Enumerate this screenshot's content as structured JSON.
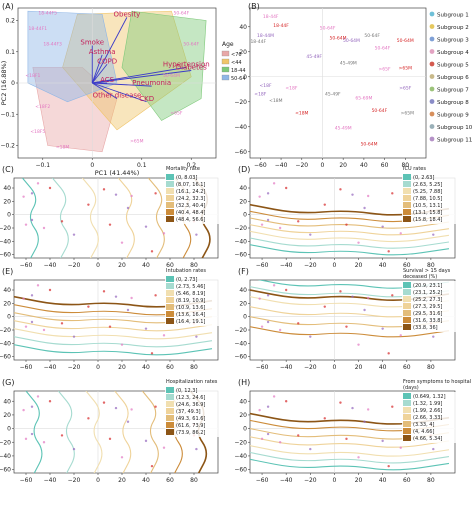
{
  "figure": {
    "panel_letters": [
      "(A)",
      "(B)",
      "(C)",
      "(D)",
      "(E)",
      "(F)",
      "(G)",
      "(H)"
    ]
  },
  "colors": {
    "axis": "#444444",
    "grid": "#dddddd",
    "text": "#222222",
    "point_pink": "#e377c2",
    "point_red": "#d62728",
    "point_purple": "#9467bd",
    "point_grey": "#777777",
    "contour_teal": "#5cc3b5",
    "contour_lightteal": "#a6dbd0",
    "contour_beige": "#f1dfb0",
    "contour_tan": "#e3bd7a",
    "contour_orange": "#cc8c3a",
    "contour_brown": "#8c5516",
    "pca_age_colors": [
      "#e8a8a8",
      "#f0c56a",
      "#7ec97a",
      "#8fb6e6"
    ]
  },
  "chart_data": [
    {
      "panel": "(A)",
      "type": "scatter",
      "xlabel": "PC1 (41.44%)",
      "ylabel": "PC2 (16.88%)",
      "xlim": [
        -0.15,
        0.25
      ],
      "ylim": [
        -0.24,
        0.24
      ],
      "xticks": [
        -0.1,
        0.0,
        0.1,
        0.2
      ],
      "yticks": [
        -0.2,
        -0.1,
        0.0,
        0.1,
        0.2
      ],
      "legend": {
        "title": "Age",
        "position": "right",
        "entries": [
          "<76",
          "<44",
          "18-44",
          "50-64"
        ]
      },
      "vectors": [
        {
          "label": "Obesity",
          "x": 0.07,
          "y": 0.21
        },
        {
          "label": "Smoke",
          "x": 0.0,
          "y": 0.12
        },
        {
          "label": "Asthma",
          "x": 0.02,
          "y": 0.09
        },
        {
          "label": "COPD",
          "x": 0.03,
          "y": 0.06
        },
        {
          "label": "Hypertension",
          "x": 0.19,
          "y": 0.05
        },
        {
          "label": "Diabetes",
          "x": 0.2,
          "y": 0.04
        },
        {
          "label": "Pneumonia",
          "x": 0.12,
          "y": -0.01
        },
        {
          "label": "ACS",
          "x": 0.03,
          "y": 0.0
        },
        {
          "label": "Other disease",
          "x": 0.05,
          "y": -0.05
        },
        {
          "label": "CKD",
          "x": 0.11,
          "y": -0.06
        }
      ],
      "points": [
        {
          "label": "18-44F5",
          "x": -0.09,
          "y": 0.22
        },
        {
          "label": "18-44F1",
          "x": -0.11,
          "y": 0.17
        },
        {
          "label": "18-44F3",
          "x": -0.08,
          "y": 0.12
        },
        {
          "label": "<18F1",
          "x": -0.12,
          "y": 0.02
        },
        {
          "label": "<18F2",
          "x": -0.1,
          "y": -0.08
        },
        {
          "label": "<18F5",
          "x": -0.11,
          "y": -0.16
        },
        {
          "label": "50-64F",
          "x": 0.18,
          "y": 0.22
        },
        {
          "label": "50-64F",
          "x": 0.2,
          "y": 0.12
        },
        {
          "label": "50-64M",
          "x": 0.16,
          "y": 0.02
        },
        {
          "label": ">65F",
          "x": 0.17,
          "y": -0.1
        },
        {
          "label": ">65M",
          "x": 0.09,
          "y": -0.19
        },
        {
          "label": "<18M",
          "x": -0.06,
          "y": -0.21
        }
      ]
    },
    {
      "panel": "(B)",
      "type": "scatter",
      "xlim": [
        -70,
        100
      ],
      "ylim": [
        -65,
        55
      ],
      "xticks": [
        -60,
        -40,
        -20,
        0,
        20,
        40,
        60,
        80
      ],
      "yticks": [
        -60,
        -40,
        -20,
        0,
        20,
        40
      ],
      "legend": {
        "position": "right",
        "entries": [
          "Subgroup 1",
          "Subgroup 2",
          "Subgroup 3",
          "Subgroup 4",
          "Subgroup 5",
          "Subgroup 6",
          "Subgroup 7",
          "Subgroup 8",
          "Subgroup 9",
          "Subgroup 10",
          "Subgroup 11"
        ]
      },
      "points": [
        {
          "label": "18-44F",
          "x": -50,
          "y": 47
        },
        {
          "label": "18-44F",
          "x": -40,
          "y": 40
        },
        {
          "label": "18-44M",
          "x": -55,
          "y": 32
        },
        {
          "label": "18-44F",
          "x": -62,
          "y": 27
        },
        {
          "label": "50-64F",
          "x": 5,
          "y": 38
        },
        {
          "label": "50-64M",
          "x": 15,
          "y": 30
        },
        {
          "label": "50-64M",
          "x": 28,
          "y": 28
        },
        {
          "label": "50-64F",
          "x": 48,
          "y": 32
        },
        {
          "label": "50-64F",
          "x": 58,
          "y": 22
        },
        {
          "label": "50-64M",
          "x": 80,
          "y": 28
        },
        {
          "label": "45-49F",
          "x": -8,
          "y": 15
        },
        {
          "label": "45-49M",
          "x": 25,
          "y": 10
        },
        {
          "label": ">65F",
          "x": 60,
          "y": 5
        },
        {
          "label": ">65M",
          "x": 80,
          "y": 6
        },
        {
          "label": "<18F",
          "x": -55,
          "y": -8
        },
        {
          "label": "<18M",
          "x": -45,
          "y": -20
        },
        {
          "label": "<18F",
          "x": -30,
          "y": -10
        },
        {
          "label": "<18M",
          "x": -20,
          "y": -30
        },
        {
          "label": "<18F",
          "x": -60,
          "y": -15
        },
        {
          "label": "45-49F",
          "x": 10,
          "y": -15
        },
        {
          "label": "65-69M",
          "x": 40,
          "y": -18
        },
        {
          "label": "50-64F",
          "x": 55,
          "y": -28
        },
        {
          "label": ">65F",
          "x": 80,
          "y": -10
        },
        {
          "label": ">65M",
          "x": 82,
          "y": -30
        },
        {
          "label": "45-49M",
          "x": 20,
          "y": -42
        },
        {
          "label": "50-64M",
          "x": 45,
          "y": -55
        }
      ]
    },
    {
      "panel": "(C)",
      "type": "scatter",
      "legend": {
        "title": "Mortality rate",
        "position": "upper-right",
        "entries": [
          "(0, 8.03]",
          "(8.07, 16.1]",
          "(16.1, 24.2]",
          "(24.2, 32.3]",
          "(32.3, 40.4]",
          "(40.4, 48.4]",
          "(48.4, 56.6]"
        ]
      }
    },
    {
      "panel": "(D)",
      "type": "scatter",
      "legend": {
        "title": "ICU rates",
        "position": "upper-right",
        "entries": [
          "(0, 2.63]",
          "(2.63, 5.25]",
          "(5.25, 7.88]",
          "(7.88, 10.5]",
          "(10.5, 13.1]",
          "(13.1, 15.8]",
          "(15.8, 18.4]"
        ]
      }
    },
    {
      "panel": "(E)",
      "type": "scatter",
      "legend": {
        "title": "Intubation rates",
        "position": "upper-right",
        "entries": [
          "(0, 2.73]",
          "(2.73, 5.46]",
          "(5.46, 8.19]",
          "(8.19, 10.9]",
          "(10.9, 13.6]",
          "(13.6, 16.4]",
          "(16.4, 19.1]"
        ]
      }
    },
    {
      "panel": "(F)",
      "type": "scatter",
      "legend": {
        "title": "Survival > 15 days deceased (%)",
        "position": "upper-right",
        "entries": [
          "(20.9, 23.1]",
          "(23.1, 25.2]",
          "(25.2, 27.3]",
          "(27.3, 29.5]",
          "(29.5, 31.6]",
          "(31.6, 33.8]",
          "(33.8, 36]"
        ]
      }
    },
    {
      "panel": "(G)",
      "type": "scatter",
      "legend": {
        "title": "Hospitalization rates",
        "position": "upper-right",
        "entries": [
          "(0, 12.3]",
          "(12.3, 24.6]",
          "(24.6, 36.9]",
          "(37, 49.3]",
          "(49.3, 61.6]",
          "(61.6, 73.9]",
          "(73.9, 86.2]"
        ]
      }
    },
    {
      "panel": "(H)",
      "type": "scatter",
      "legend": {
        "title": "From symptoms to hospital (days)",
        "position": "upper-right",
        "entries": [
          "(0.649, 1.32]",
          "(1.32, 1.99]",
          "(1.99, 2.66]",
          "(2.66, 3.33]",
          "(3.33, 4]",
          "(4, 4.66]",
          "(4.66, 5.34]"
        ]
      }
    }
  ]
}
